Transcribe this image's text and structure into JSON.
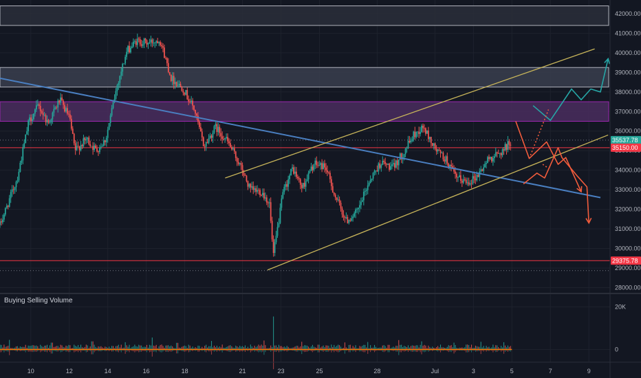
{
  "chart_data": {
    "type": "candlestick",
    "title": "",
    "price_axis": {
      "ticks": [
        42000,
        41000,
        40000,
        39000,
        38000,
        37000,
        36000,
        35000,
        34000,
        33000,
        32000,
        31000,
        30000,
        29000,
        28000
      ],
      "labels": [
        "42000.00",
        "41000.00",
        "40000.00",
        "39000.00",
        "38000.00",
        "37000.00",
        "36000.00",
        "35000.00",
        "34000.00",
        "33000.00",
        "32000.00",
        "31000.00",
        "30000.00",
        "29000.00",
        "28000.00"
      ],
      "ylim": [
        27700,
        42700
      ]
    },
    "time_axis": {
      "labels": [
        "10",
        "12",
        "14",
        "16",
        "18",
        "21",
        "23",
        "25",
        "28",
        "Jul",
        "3",
        "5",
        "7",
        "9"
      ],
      "values": [
        10,
        12,
        14,
        16,
        18,
        21,
        23,
        25,
        28,
        31,
        33,
        35,
        37,
        39
      ],
      "xlim": [
        8.4,
        40.1
      ]
    },
    "price_pills": [
      {
        "label": "35537.78",
        "value": 35537.78,
        "color": "#26a69a"
      },
      {
        "label": "35150.00",
        "value": 35150.0,
        "color": "#f23645"
      },
      {
        "label": "29375.78",
        "value": 29375.78,
        "color": "#f23645"
      }
    ],
    "horizontal_lines": [
      {
        "value": 35150,
        "color": "#f23645"
      },
      {
        "value": 29375.78,
        "color": "#f23645"
      }
    ],
    "dotted_lines": [
      35537.78,
      28870
    ],
    "zones": [
      {
        "from": 41400,
        "to": 42400,
        "color": "#2a2e39",
        "edge": "#b2b5be"
      },
      {
        "from": 38250,
        "to": 39250,
        "color": "#3a3e4d",
        "edge": "#b2b5be"
      },
      {
        "from": 36500,
        "to": 37500,
        "color": "#4a2d5e",
        "edge": "#9c27b0"
      }
    ],
    "trendlines": [
      {
        "color": "#4a7fc1",
        "points": [
          [
            8.4,
            38700
          ],
          [
            39.6,
            32600
          ]
        ]
      },
      {
        "color": "#c8b55a",
        "points": [
          [
            22.3,
            28900
          ],
          [
            40.0,
            35800
          ]
        ]
      },
      {
        "color": "#c8b55a",
        "points": [
          [
            20.1,
            33600
          ],
          [
            39.3,
            40200
          ]
        ]
      }
    ],
    "projections": [
      {
        "color": "#26a6a6",
        "points": [
          [
            36.1,
            37300
          ],
          [
            37.0,
            36550
          ],
          [
            38.1,
            38150
          ],
          [
            38.6,
            37600
          ],
          [
            39.1,
            38150
          ],
          [
            39.6,
            38000
          ],
          [
            40.0,
            39700
          ]
        ]
      },
      {
        "color": "#f25c3c",
        "points": [
          [
            35.2,
            36500
          ],
          [
            35.9,
            34600
          ],
          [
            36.8,
            35450
          ],
          [
            37.4,
            34300
          ],
          [
            37.8,
            34650
          ],
          [
            38.6,
            32900
          ]
        ]
      },
      {
        "color": "#f25c3c",
        "points": [
          [
            35.6,
            33300
          ],
          [
            36.3,
            33850
          ],
          [
            36.7,
            33600
          ],
          [
            37.4,
            35150
          ],
          [
            37.6,
            34650
          ],
          [
            38.4,
            33700
          ],
          [
            38.9,
            33150
          ],
          [
            39.0,
            31300
          ]
        ]
      },
      {
        "color": "#f25c3c",
        "dash": true,
        "points": [
          [
            35.9,
            34600
          ],
          [
            36.9,
            37100
          ]
        ]
      },
      {
        "color": "#f25c3c",
        "dash": true,
        "points": [
          [
            36.6,
            34300
          ],
          [
            36.9,
            34100
          ]
        ]
      }
    ],
    "price_path": [
      [
        8.4,
        31200
      ],
      [
        9.3,
        33600
      ],
      [
        9.9,
        36500
      ],
      [
        10.4,
        37300
      ],
      [
        10.9,
        36400
      ],
      [
        11.5,
        37600
      ],
      [
        12.0,
        36700
      ],
      [
        12.3,
        35000
      ],
      [
        12.9,
        35600
      ],
      [
        13.4,
        35000
      ],
      [
        13.9,
        35600
      ],
      [
        14.5,
        38400
      ],
      [
        15.0,
        40100
      ],
      [
        15.5,
        40600
      ],
      [
        16.1,
        40500
      ],
      [
        16.7,
        40700
      ],
      [
        17.3,
        38700
      ],
      [
        17.9,
        38200
      ],
      [
        18.5,
        37100
      ],
      [
        19.0,
        35200
      ],
      [
        19.6,
        36200
      ],
      [
        20.2,
        35500
      ],
      [
        20.8,
        34400
      ],
      [
        21.4,
        33000
      ],
      [
        22.0,
        32900
      ],
      [
        22.4,
        32300
      ],
      [
        22.6,
        29600
      ],
      [
        23.1,
        32800
      ],
      [
        23.6,
        34100
      ],
      [
        24.1,
        33100
      ],
      [
        24.7,
        34300
      ],
      [
        25.3,
        34200
      ],
      [
        25.8,
        32700
      ],
      [
        26.4,
        31400
      ],
      [
        27.0,
        31900
      ],
      [
        27.6,
        33500
      ],
      [
        28.2,
        34400
      ],
      [
        28.8,
        34100
      ],
      [
        29.3,
        34800
      ],
      [
        29.9,
        35800
      ],
      [
        30.4,
        36200
      ],
      [
        31.0,
        35100
      ],
      [
        31.6,
        34500
      ],
      [
        32.1,
        33600
      ],
      [
        32.7,
        33400
      ],
      [
        33.2,
        33700
      ],
      [
        33.8,
        34600
      ],
      [
        34.3,
        34800
      ],
      [
        34.6,
        35100
      ],
      [
        35.0,
        35540
      ]
    ],
    "volume_pane": {
      "title": "Buying Selling Volume",
      "ticks": [
        20000,
        0
      ],
      "labels": [
        "20K",
        "0"
      ],
      "ylim": [
        -6000,
        26000
      ],
      "x_end": 35.0,
      "spikes": [
        [
          8.9,
          4500
        ],
        [
          11.1,
          3200
        ],
        [
          13.2,
          3800
        ],
        [
          14.9,
          3400
        ],
        [
          16.3,
          5600
        ],
        [
          17.6,
          3100
        ],
        [
          19.4,
          4000
        ],
        [
          22.1,
          4200
        ],
        [
          22.6,
          15500
        ],
        [
          24.1,
          3600
        ],
        [
          26.3,
          3300
        ],
        [
          27.5,
          3500
        ],
        [
          29.1,
          4400
        ],
        [
          30.3,
          3800
        ],
        [
          32.0,
          3200
        ],
        [
          33.4,
          3600
        ],
        [
          34.6,
          3400
        ]
      ]
    }
  }
}
